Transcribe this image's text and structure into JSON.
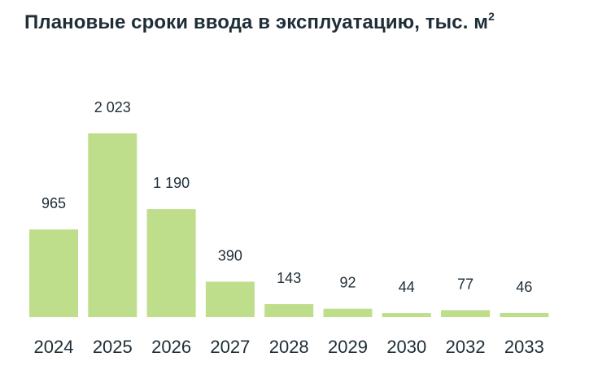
{
  "chart_data": {
    "type": "bar",
    "title": "Плановые сроки ввода в эксплуатацию, тыс. м",
    "title_superscript": "2",
    "categories": [
      "2024",
      "2025",
      "2026",
      "2027",
      "2028",
      "2029",
      "2030",
      "2032",
      "2033"
    ],
    "values": [
      965,
      2023,
      1190,
      390,
      143,
      92,
      44,
      77,
      46
    ],
    "value_labels": [
      "965",
      "2 023",
      "1 190",
      "390",
      "143",
      "92",
      "44",
      "77",
      "46"
    ],
    "xlabel": "",
    "ylabel": "",
    "ylim": [
      0,
      2023
    ],
    "grid": false,
    "legend": "none",
    "bar_color": "#bede8c",
    "text_color": "#1e2d36"
  }
}
